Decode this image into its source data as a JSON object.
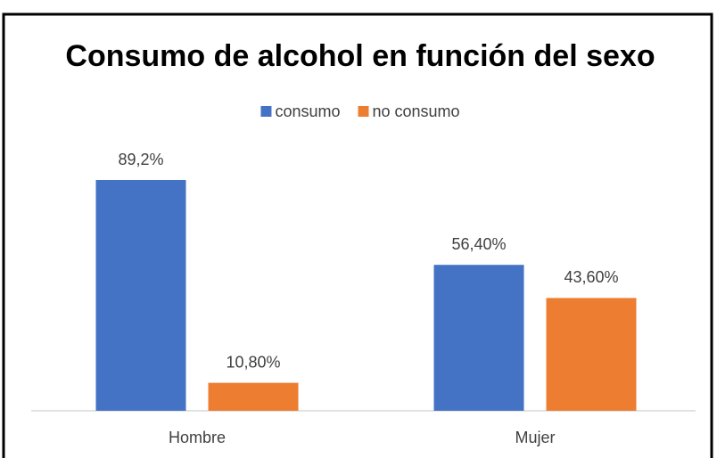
{
  "chart_data": {
    "type": "bar",
    "title": "Consumo de alcohol en función del sexo",
    "categories": [
      "Hombre",
      "Mujer"
    ],
    "series": [
      {
        "name": "consumo",
        "color": "#4472c4",
        "values": [
          89.2,
          56.4
        ],
        "value_labels": [
          "89,2%",
          "56,40%"
        ]
      },
      {
        "name": "no consumo",
        "color": "#ed7d31",
        "values": [
          10.8,
          43.6
        ],
        "value_labels": [
          "10,80%",
          "43,60%"
        ]
      }
    ],
    "legend": "top"
  }
}
